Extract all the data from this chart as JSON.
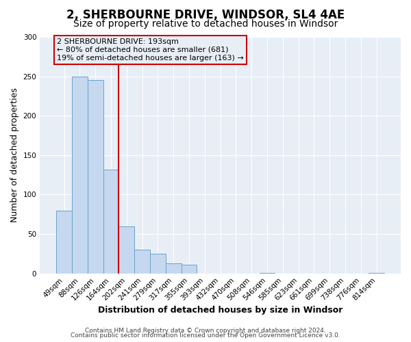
{
  "title": "2, SHERBOURNE DRIVE, WINDSOR, SL4 4AE",
  "subtitle": "Size of property relative to detached houses in Windsor",
  "xlabel": "Distribution of detached houses by size in Windsor",
  "ylabel": "Number of detached properties",
  "categories": [
    "49sqm",
    "88sqm",
    "126sqm",
    "164sqm",
    "202sqm",
    "241sqm",
    "279sqm",
    "317sqm",
    "355sqm",
    "393sqm",
    "432sqm",
    "470sqm",
    "508sqm",
    "546sqm",
    "585sqm",
    "623sqm",
    "661sqm",
    "699sqm",
    "738sqm",
    "776sqm",
    "814sqm"
  ],
  "values": [
    80,
    250,
    245,
    132,
    60,
    30,
    25,
    13,
    11,
    0,
    0,
    0,
    0,
    1,
    0,
    0,
    0,
    0,
    0,
    0,
    1
  ],
  "bar_color": "#c5d8ef",
  "bar_edge_color": "#6aa3cc",
  "vline_color": "#cc0000",
  "vline_pos": 3.5,
  "ylim": [
    0,
    300
  ],
  "yticks": [
    0,
    50,
    100,
    150,
    200,
    250,
    300
  ],
  "annotation_text": "2 SHERBOURNE DRIVE: 193sqm\n← 80% of detached houses are smaller (681)\n19% of semi-detached houses are larger (163) →",
  "annotation_box_color": "#cc0000",
  "footer1": "Contains HM Land Registry data © Crown copyright and database right 2024.",
  "footer2": "Contains public sector information licensed under the Open Government Licence v3.0.",
  "fig_bg_color": "#ffffff",
  "plot_bg_color": "#e8eef6",
  "grid_color": "#ffffff",
  "title_fontsize": 12,
  "subtitle_fontsize": 10,
  "axis_label_fontsize": 9,
  "tick_fontsize": 7.5,
  "annotation_fontsize": 8,
  "footer_fontsize": 6.5
}
